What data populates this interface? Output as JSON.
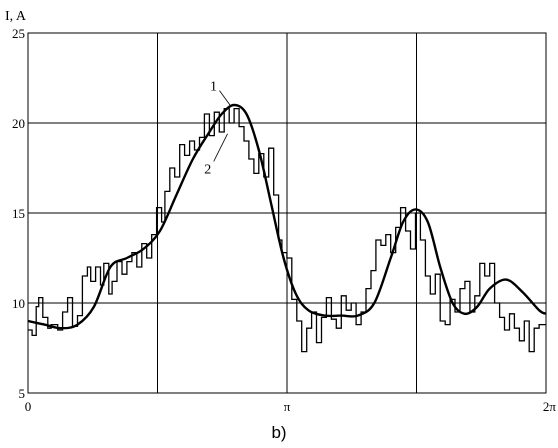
{
  "chart_data": {
    "type": "line",
    "ylabel": "I, A",
    "caption": "b)",
    "xlim": [
      0,
      6.2832
    ],
    "ylim": [
      5,
      25
    ],
    "grid": true,
    "x_ticks": [
      {
        "value": 0,
        "label": "0"
      },
      {
        "value": 3.1416,
        "label": "π"
      },
      {
        "value": 6.2832,
        "label": "2π"
      }
    ],
    "y_ticks": [
      {
        "value": 5,
        "label": "5"
      },
      {
        "value": 10,
        "label": "10"
      },
      {
        "value": 15,
        "label": "15"
      },
      {
        "value": 20,
        "label": "20"
      },
      {
        "value": 25,
        "label": "25"
      }
    ],
    "x_gridlines": [
      1.5708,
      3.1416,
      4.7124,
      6.2832
    ],
    "y_gridlines": [
      10,
      15,
      20,
      25
    ],
    "series": [
      {
        "name": "1",
        "type": "smooth",
        "x": [
          0,
          0.2,
          0.4,
          0.6,
          0.8,
          1.0,
          1.2,
          1.4,
          1.6,
          1.8,
          2.0,
          2.2,
          2.35,
          2.5,
          2.65,
          2.8,
          2.95,
          3.1,
          3.25,
          3.4,
          3.6,
          3.8,
          4.0,
          4.2,
          4.4,
          4.55,
          4.7,
          4.85,
          5.0,
          5.15,
          5.3,
          5.45,
          5.6,
          5.8,
          6.0,
          6.2,
          6.2832
        ],
        "y": [
          9.0,
          8.8,
          8.6,
          8.8,
          9.8,
          12.0,
          12.5,
          13.0,
          14.0,
          16.0,
          18.0,
          19.5,
          20.5,
          21.0,
          20.5,
          18.5,
          15.5,
          12.5,
          10.5,
          9.6,
          9.3,
          9.3,
          9.3,
          10.0,
          12.5,
          14.5,
          15.2,
          14.5,
          12.0,
          10.0,
          9.4,
          9.8,
          10.8,
          11.3,
          10.6,
          9.6,
          9.4
        ]
      },
      {
        "name": "2",
        "type": "stepped",
        "x": [
          0,
          0.05,
          0.1,
          0.13,
          0.18,
          0.24,
          0.28,
          0.36,
          0.42,
          0.48,
          0.54,
          0.6,
          0.66,
          0.72,
          0.76,
          0.82,
          0.88,
          0.92,
          0.98,
          1.02,
          1.08,
          1.14,
          1.2,
          1.26,
          1.32,
          1.38,
          1.44,
          1.5,
          1.56,
          1.62,
          1.66,
          1.72,
          1.78,
          1.84,
          1.9,
          1.96,
          2.02,
          2.08,
          2.14,
          2.2,
          2.26,
          2.32,
          2.38,
          2.44,
          2.5,
          2.56,
          2.62,
          2.68,
          2.74,
          2.8,
          2.86,
          2.92,
          2.98,
          3.04,
          3.08,
          3.14,
          3.2,
          3.26,
          3.32,
          3.38,
          3.44,
          3.5,
          3.56,
          3.62,
          3.68,
          3.74,
          3.8,
          3.86,
          3.92,
          3.98,
          4.04,
          4.1,
          4.16,
          4.22,
          4.28,
          4.34,
          4.4,
          4.46,
          4.52,
          4.58,
          4.64,
          4.7,
          4.76,
          4.82,
          4.88,
          4.94,
          5.0,
          5.06,
          5.12,
          5.18,
          5.24,
          5.3,
          5.36,
          5.42,
          5.48,
          5.54,
          5.6,
          5.66,
          5.72,
          5.78,
          5.84,
          5.9,
          5.96,
          6.02,
          6.08,
          6.14,
          6.2,
          6.2832
        ],
        "y": [
          8.5,
          8.2,
          9.8,
          10.3,
          9.2,
          8.6,
          8.8,
          8.5,
          9.5,
          10.3,
          8.7,
          9.3,
          11.5,
          12.0,
          11.2,
          12.0,
          11.0,
          12.2,
          10.5,
          11.2,
          12.3,
          11.6,
          12.3,
          12.8,
          12.0,
          13.3,
          12.5,
          13.8,
          15.3,
          14.5,
          16.2,
          17.5,
          17.0,
          18.8,
          18.2,
          19.0,
          18.5,
          19.2,
          20.5,
          19.3,
          20.6,
          19.5,
          20.8,
          20.0,
          20.8,
          19.8,
          19.0,
          18.0,
          17.2,
          18.3,
          17.0,
          18.6,
          16.0,
          13.5,
          12.8,
          12.5,
          10.2,
          9.0,
          7.3,
          8.6,
          9.5,
          7.8,
          9.2,
          10.3,
          9.1,
          8.6,
          10.4,
          9.6,
          10.0,
          8.8,
          9.5,
          10.8,
          11.8,
          13.5,
          13.2,
          13.8,
          12.8,
          14.2,
          15.3,
          14.0,
          13.0,
          15.0,
          13.5,
          11.5,
          10.5,
          11.6,
          9.0,
          8.8,
          10.2,
          9.5,
          10.8,
          11.2,
          9.5,
          10.4,
          12.2,
          11.5,
          12.2,
          10.0,
          9.2,
          8.5,
          9.4,
          8.6,
          7.9,
          9.0,
          7.3,
          8.6,
          8.8,
          8.8
        ]
      }
    ],
    "annotations": [
      {
        "text": "1",
        "x": 2.25,
        "y": 21.8,
        "target_x": 2.45,
        "target_y": 21.0
      },
      {
        "text": "2",
        "x": 2.18,
        "y": 17.2,
        "target_x": 2.42,
        "target_y": 19.4
      }
    ]
  }
}
